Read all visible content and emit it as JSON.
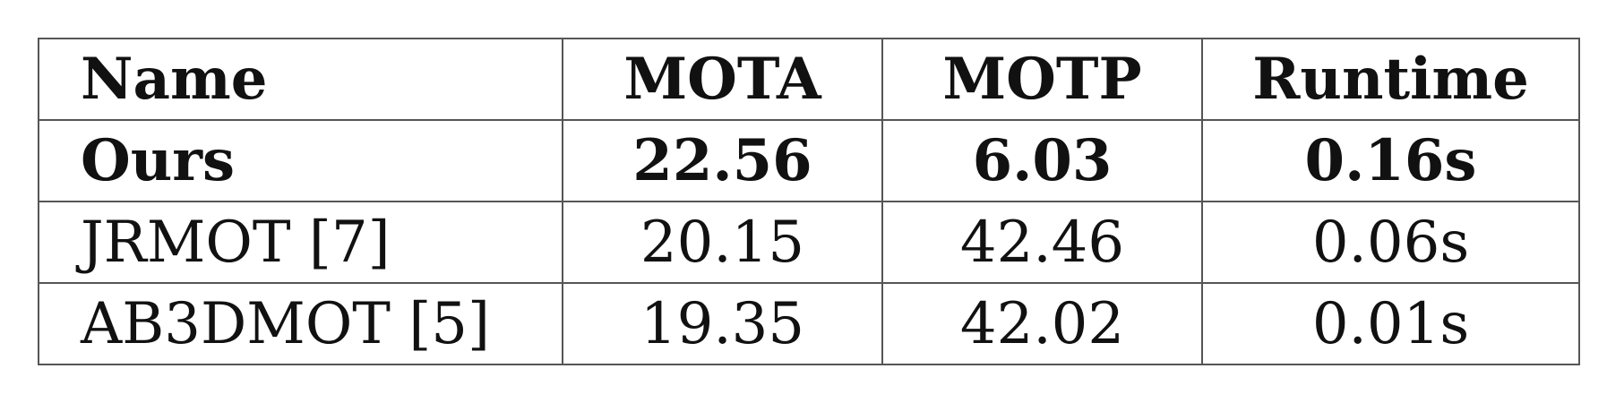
{
  "table": {
    "headers": [
      "Name",
      "MOTA",
      "MOTP",
      "Runtime"
    ],
    "rows": [
      {
        "name": "Ours",
        "mota": "22.56",
        "motp": "6.03",
        "runtime": "0.16s",
        "bold": true
      },
      {
        "name": "JRMOT [7]",
        "mota": "20.15",
        "motp": "42.46",
        "runtime": "0.06s",
        "bold": false
      },
      {
        "name": "AB3DMOT [5]",
        "mota": "19.35",
        "motp": "42.02",
        "runtime": "0.01s",
        "bold": false
      }
    ]
  }
}
